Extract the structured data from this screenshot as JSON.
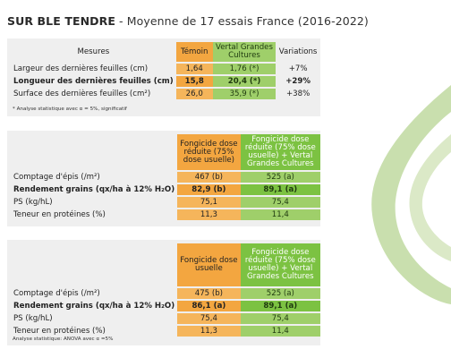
{
  "title": {
    "crop": "SUR BLE TENDRE",
    "subtitle": " - Moyenne de 17 essais France (2016-2022)"
  },
  "table1": {
    "headers": {
      "mesures": "Mesures",
      "temoin": "Témoin",
      "vertal": "Vertal Grandes Cultures",
      "variations": "Variations"
    },
    "rows": [
      {
        "label": "Largeur des dernières feuilles (cm)",
        "temoin": "1,64",
        "vertal": "1,76 (*)",
        "variation": "+7%"
      },
      {
        "label": "Longueur des dernières feuilles (cm)",
        "temoin": "15,8",
        "vertal": "20,4 (*)",
        "variation": "+29%"
      },
      {
        "label": "Surface des dernières feuilles (cm²)",
        "temoin": "26,0",
        "vertal": "35,9 (*)",
        "variation": "+38%"
      }
    ],
    "note": "* Analyse statistique avec α = 5%, significatif"
  },
  "table2": {
    "headers": {
      "col1": "Fongicide dose réduite (75% dose usuelle)",
      "col2": "Fongicide dose réduite (75% dose usuelle) + Vertal Grandes Cultures"
    },
    "rows": [
      {
        "label": "Comptage d'épis (/m²)",
        "a": "467 (b)",
        "b": "525 (a)"
      },
      {
        "label": "Rendement grains (qx/ha à 12% H₂O)",
        "a": "82,9 (b)",
        "b": "89,1 (a)"
      },
      {
        "label": "PS (kg/hL)",
        "a": "75,1",
        "b": "75,4"
      },
      {
        "label": "Teneur en protéines (%)",
        "a": "11,3",
        "b": "11,4"
      }
    ]
  },
  "table3": {
    "headers": {
      "col1": "Fongicide dose usuelle",
      "col2": "Fongicide dose réduite (75% dose usuelle) + Vertal Grandes Cultures"
    },
    "rows": [
      {
        "label": "Comptage d'épis (/m²)",
        "a": "475 (b)",
        "b": "525 (a)"
      },
      {
        "label": "Rendement grains (qx/ha à 12% H₂O)",
        "a": "86,1 (a)",
        "b": "89,1 (a)"
      },
      {
        "label": "PS (kg/hL)",
        "a": "75,4",
        "b": "75,4"
      },
      {
        "label": "Teneur en protéines (%)",
        "a": "11,3",
        "b": "11,4"
      }
    ],
    "note": "Analyse statistique: ANOVA avec α =5%"
  },
  "colors": {
    "orange": "#f3a640",
    "green": "#7cc242",
    "leaf": "#c9dfae",
    "panel": "#efefef"
  },
  "decor": {
    "icon": "leaf-swirl-icon"
  }
}
